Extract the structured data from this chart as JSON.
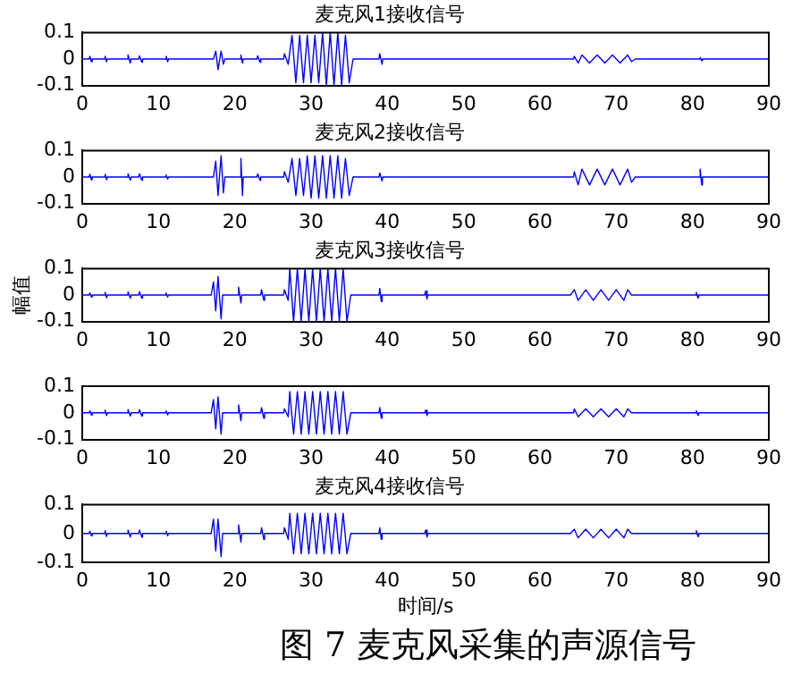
{
  "chart_data": [
    {
      "type": "line",
      "title": "麦克风1接收信号",
      "xlim": [
        0,
        90
      ],
      "xticks": [
        0,
        10,
        20,
        30,
        40,
        50,
        60,
        70,
        80,
        90
      ],
      "ylim": [
        -0.1,
        0.1
      ],
      "yticks": [
        0.1,
        0,
        -0.1
      ],
      "grid": false,
      "marker": "none",
      "series": [
        {
          "color": "#0000ff",
          "x": [
            0,
            0.9,
            1,
            1.2,
            1.3,
            2.9,
            3,
            3.2,
            3.3,
            5.9,
            6,
            6.3,
            6.4,
            7.4,
            7.5,
            7.8,
            7.9,
            10.9,
            11,
            11.2,
            11.3,
            17.2,
            17.5,
            17.8,
            18.2,
            18.5,
            18.7,
            20.7,
            20.8,
            21,
            21.1,
            22.9,
            23,
            23.3,
            23.4,
            26.4,
            26.5,
            27,
            27.5,
            28,
            28.5,
            29,
            29.5,
            30,
            30.5,
            31,
            31.5,
            32,
            32.5,
            33,
            33.5,
            34,
            34.5,
            35,
            35.5,
            38.9,
            39,
            39.3,
            39.4,
            64.4,
            64.5,
            65,
            65.5,
            66.5,
            67.5,
            68.5,
            69.5,
            70.5,
            71.5,
            72,
            72.5,
            80.9,
            81,
            81.2,
            81.3,
            90
          ],
          "values": [
            0,
            0,
            0.01,
            -0.01,
            0,
            0,
            0.01,
            -0.01,
            0,
            0,
            0.015,
            -0.015,
            0,
            0,
            0.012,
            -0.012,
            0,
            0,
            0.01,
            -0.01,
            0,
            0,
            0.03,
            -0.04,
            0.03,
            -0.02,
            0,
            0,
            0.015,
            -0.015,
            0,
            0,
            0.012,
            -0.012,
            0,
            0,
            0.02,
            -0.02,
            0.09,
            -0.09,
            0.09,
            -0.09,
            0.09,
            -0.09,
            0.09,
            -0.09,
            0.1,
            -0.1,
            0.1,
            -0.1,
            0.1,
            -0.1,
            0.09,
            -0.09,
            0,
            0,
            0.02,
            -0.02,
            0,
            0,
            0.01,
            -0.015,
            0.015,
            -0.015,
            0.015,
            -0.015,
            0.015,
            -0.015,
            0.015,
            -0.01,
            0,
            0,
            0.006,
            -0.006,
            0,
            0
          ]
        }
      ]
    },
    {
      "type": "line",
      "title": "麦克风2接收信号",
      "xlim": [
        0,
        90
      ],
      "xticks": [
        0,
        10,
        20,
        30,
        40,
        50,
        60,
        70,
        80,
        90
      ],
      "ylim": [
        -0.1,
        0.1
      ],
      "yticks": [
        0.1,
        0,
        -0.1
      ],
      "grid": false,
      "marker": "none",
      "series": [
        {
          "color": "#0000ff",
          "x": [
            0,
            0.9,
            1,
            1.2,
            1.3,
            2.9,
            3,
            3.2,
            3.3,
            5.9,
            6,
            6.3,
            6.4,
            7.4,
            7.5,
            7.8,
            7.9,
            10.9,
            11,
            11.2,
            11.3,
            17.2,
            17.5,
            17.8,
            18.2,
            18.5,
            18.7,
            20.7,
            20.8,
            21,
            21.1,
            22.9,
            23,
            23.3,
            23.4,
            26.4,
            26.5,
            27,
            27.5,
            28,
            28.5,
            29,
            29.5,
            30,
            30.5,
            31,
            31.5,
            32,
            32.5,
            33,
            33.5,
            34,
            34.5,
            35,
            35.5,
            38.9,
            39,
            39.3,
            39.4,
            64.4,
            64.5,
            65,
            65.5,
            66.5,
            67.5,
            68.5,
            69.5,
            70.5,
            71.5,
            72,
            72.5,
            80.9,
            81,
            81.2,
            81.3,
            90
          ],
          "values": [
            0,
            0,
            0.01,
            -0.01,
            0,
            0,
            0.01,
            -0.01,
            0,
            0,
            0.012,
            -0.012,
            0,
            0,
            0.012,
            -0.012,
            0,
            0,
            0.008,
            -0.008,
            0,
            0,
            0.06,
            -0.07,
            0.08,
            -0.06,
            0,
            0,
            0.07,
            -0.07,
            0,
            0,
            0.012,
            -0.012,
            0,
            0,
            0.02,
            -0.02,
            0.07,
            -0.07,
            0.07,
            -0.07,
            0.08,
            -0.08,
            0.08,
            -0.08,
            0.08,
            -0.08,
            0.08,
            -0.08,
            0.08,
            -0.08,
            0.07,
            -0.07,
            0,
            0,
            0.015,
            -0.015,
            0,
            0,
            0.02,
            -0.03,
            0.03,
            -0.03,
            0.03,
            -0.03,
            0.03,
            -0.03,
            0.03,
            -0.02,
            0,
            0,
            0.03,
            -0.03,
            0,
            0
          ]
        }
      ]
    },
    {
      "type": "line",
      "title": "麦克风3接收信号",
      "ylabel": "幅值",
      "xlim": [
        0,
        90
      ],
      "xticks": [
        0,
        10,
        20,
        30,
        40,
        50,
        60,
        70,
        80,
        90
      ],
      "ylim": [
        -0.1,
        0.1
      ],
      "yticks": [
        0.1,
        0,
        -0.1
      ],
      "grid": false,
      "marker": "none",
      "series": [
        {
          "color": "#0000ff",
          "x": [
            0,
            0.9,
            1,
            1.2,
            1.3,
            2.9,
            3,
            3.2,
            3.3,
            5.9,
            6,
            6.3,
            6.4,
            7.4,
            7.5,
            7.8,
            7.9,
            10.9,
            11,
            11.2,
            11.3,
            16.9,
            17.2,
            17.5,
            17.8,
            18.2,
            18.4,
            20.4,
            20.5,
            20.8,
            20.9,
            23.4,
            23.5,
            23.8,
            23.9,
            26.4,
            26.5,
            27,
            27.2,
            27.7,
            28.2,
            28.7,
            29.2,
            29.7,
            30.2,
            30.7,
            31.2,
            31.7,
            32.2,
            32.7,
            33.2,
            33.7,
            34.2,
            34.7,
            35.2,
            38.9,
            39,
            39.2,
            39.3,
            44.9,
            45,
            45.2,
            45.3,
            64,
            64.5,
            65,
            66,
            67,
            68,
            69,
            70,
            71,
            71.5,
            72,
            80.4,
            80.5,
            80.7,
            80.8,
            90
          ],
          "values": [
            0,
            0,
            0.008,
            -0.008,
            0,
            0,
            0.01,
            -0.01,
            0,
            0,
            0.012,
            -0.012,
            0,
            0,
            0.012,
            -0.012,
            0,
            0,
            0.008,
            -0.008,
            0,
            0,
            0.05,
            -0.06,
            0.07,
            -0.09,
            0,
            0,
            0.03,
            -0.03,
            0,
            0,
            0.02,
            -0.02,
            0,
            0,
            0.02,
            -0.02,
            0.1,
            -0.1,
            0.1,
            -0.1,
            0.1,
            -0.1,
            0.1,
            -0.1,
            0.1,
            -0.1,
            0.1,
            -0.1,
            0.1,
            -0.1,
            0.1,
            -0.1,
            0,
            0,
            0.025,
            -0.025,
            0,
            0,
            0.015,
            -0.015,
            0,
            0,
            0.02,
            -0.02,
            0.02,
            -0.02,
            0.02,
            -0.02,
            0.02,
            -0.02,
            0.02,
            0,
            0,
            0.01,
            -0.01,
            0,
            0
          ]
        }
      ]
    },
    {
      "type": "line",
      "xlim": [
        0,
        90
      ],
      "xticks": [
        0,
        10,
        20,
        30,
        40,
        50,
        60,
        70,
        80,
        90
      ],
      "ylim": [
        -0.1,
        0.1
      ],
      "yticks": [
        0.1,
        0,
        -0.1
      ],
      "grid": false,
      "marker": "none",
      "series": [
        {
          "color": "#0000ff",
          "x": [
            0,
            0.9,
            1,
            1.2,
            1.3,
            2.9,
            3,
            3.2,
            3.3,
            5.9,
            6,
            6.3,
            6.4,
            7.4,
            7.5,
            7.8,
            7.9,
            10.9,
            11,
            11.2,
            11.3,
            16.9,
            17.2,
            17.5,
            17.8,
            18.2,
            18.4,
            20.4,
            20.5,
            20.8,
            20.9,
            23.4,
            23.5,
            23.8,
            23.9,
            26.4,
            26.5,
            27,
            27.2,
            27.7,
            28.2,
            28.7,
            29.2,
            29.7,
            30.2,
            30.7,
            31.2,
            31.7,
            32.2,
            32.7,
            33.2,
            33.7,
            34.2,
            34.7,
            35.2,
            38.9,
            39,
            39.2,
            39.3,
            44.9,
            45,
            45.2,
            45.3,
            64.4,
            64.5,
            65,
            66,
            67,
            68,
            69,
            70,
            71,
            71.5,
            72,
            80.4,
            80.5,
            80.7,
            80.8,
            90
          ],
          "values": [
            0,
            0,
            0.008,
            -0.008,
            0,
            0,
            0.01,
            -0.01,
            0,
            0,
            0.012,
            -0.012,
            0,
            0,
            0.012,
            -0.012,
            0,
            0,
            0.008,
            -0.008,
            0,
            0,
            0.05,
            -0.06,
            0.06,
            -0.08,
            0,
            0,
            0.03,
            -0.03,
            0,
            0,
            0.02,
            -0.02,
            0,
            0,
            0.015,
            -0.015,
            0.08,
            -0.08,
            0.08,
            -0.08,
            0.08,
            -0.08,
            0.08,
            -0.08,
            0.08,
            -0.08,
            0.08,
            -0.08,
            0.08,
            -0.08,
            0.08,
            -0.08,
            0,
            0,
            0.02,
            -0.02,
            0,
            0,
            0.01,
            -0.01,
            0,
            0,
            0.015,
            -0.015,
            0.015,
            -0.015,
            0.015,
            -0.015,
            0.015,
            -0.015,
            0.015,
            0,
            0,
            0.008,
            -0.008,
            0,
            0
          ]
        }
      ]
    },
    {
      "type": "line",
      "title": "麦克风4接收信号",
      "xlabel": "时间/s",
      "annotations": [
        "图 7  麦克风采集的声源信号"
      ],
      "xlim": [
        0,
        90
      ],
      "xticks": [
        0,
        10,
        20,
        30,
        40,
        50,
        60,
        70,
        80,
        90
      ],
      "ylim": [
        -0.1,
        0.1
      ],
      "yticks": [
        0.1,
        0,
        -0.1
      ],
      "grid": false,
      "marker": "none",
      "series": [
        {
          "color": "#0000ff",
          "x": [
            0,
            0.9,
            1,
            1.2,
            1.3,
            2.9,
            3,
            3.2,
            3.3,
            5.9,
            6,
            6.3,
            6.4,
            7.4,
            7.5,
            7.8,
            7.9,
            10.9,
            11,
            11.2,
            11.3,
            16.9,
            17.2,
            17.5,
            17.8,
            18.2,
            18.4,
            20.4,
            20.5,
            20.8,
            20.9,
            23.4,
            23.5,
            23.8,
            23.9,
            26.4,
            26.5,
            27,
            27.2,
            27.7,
            28.2,
            28.7,
            29.2,
            29.7,
            30.2,
            30.7,
            31.2,
            31.7,
            32.2,
            32.7,
            33.2,
            33.7,
            34.2,
            34.7,
            35.2,
            38.9,
            39,
            39.2,
            39.3,
            44.9,
            45,
            45.2,
            45.3,
            64,
            64.5,
            65,
            66,
            67,
            68,
            69,
            70,
            71,
            71.5,
            72,
            80.4,
            80.5,
            80.7,
            80.8,
            90
          ],
          "values": [
            0,
            0,
            0.008,
            -0.008,
            0,
            0,
            0.01,
            -0.01,
            0,
            0,
            0.012,
            -0.012,
            0,
            0,
            0.012,
            -0.012,
            0,
            0,
            0.008,
            -0.008,
            0,
            0,
            0.05,
            -0.06,
            0.05,
            -0.08,
            0,
            0,
            0.03,
            -0.03,
            0,
            0,
            0.02,
            -0.02,
            0,
            0,
            0.02,
            -0.02,
            0.07,
            -0.07,
            0.07,
            -0.07,
            0.07,
            -0.07,
            0.07,
            -0.07,
            0.07,
            -0.07,
            0.07,
            -0.07,
            0.07,
            -0.07,
            0.07,
            -0.07,
            0,
            0,
            0.02,
            -0.02,
            0,
            0,
            0.012,
            -0.012,
            0,
            0,
            0.015,
            -0.015,
            0.015,
            -0.015,
            0.015,
            -0.015,
            0.015,
            -0.015,
            0.015,
            0,
            0,
            0.01,
            -0.01,
            0,
            0
          ]
        }
      ]
    }
  ]
}
